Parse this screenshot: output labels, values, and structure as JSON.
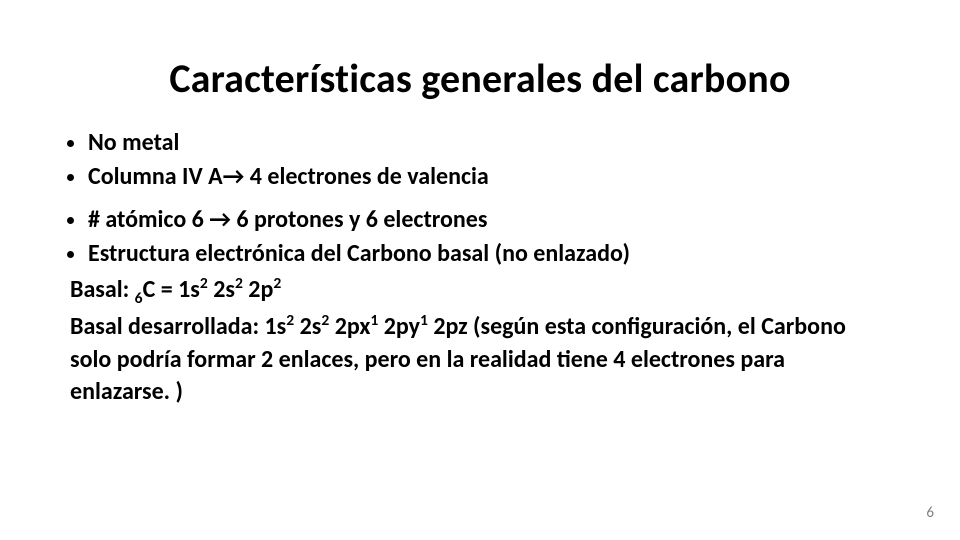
{
  "title": "Características generales del carbono",
  "bullets_top": [
    " No metal",
    "Columna IV A→ 4 electrones de valencia"
  ],
  "bullets_mid": [
    "# atómico 6 → 6 protones y 6 electrones",
    "Estructura electrónica del Carbono basal (no enlazado)"
  ],
  "basal_label": "Basal:   ",
  "basal_sub": "6",
  "basal_elem": "C = ",
  "conf_1s2": "1s",
  "conf_2s2": "2s",
  "conf_2p2": "2p",
  "sup2": "2",
  "dev_label": "Basal desarrollada: ",
  "dev_1s2": "1s",
  "dev_2s2": "2s",
  "dev_2px1": "2px",
  "dev_2py1": "2py",
  "dev_2pz": "2pz",
  "sup1": "1",
  "dev_tail": "  (según esta configuración, el Carbono solo podría formar 2 enlaces, pero en la realidad tiene 4 electrones para enlazarse. )",
  "page_number": "6",
  "colors": {
    "text": "#000000",
    "bg": "#ffffff",
    "pagenum": "#7f7f7f"
  },
  "fonts": {
    "title_pt": 40,
    "body_pt": 24,
    "pagenum_pt": 15,
    "weight": 700
  }
}
